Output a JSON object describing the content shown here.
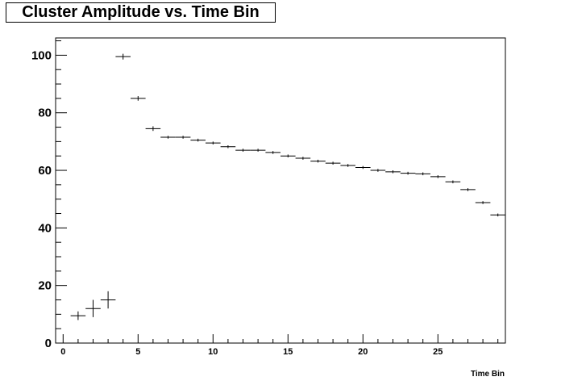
{
  "chart_data": {
    "type": "scatter",
    "title": "Cluster Amplitude vs. Time Bin",
    "xlabel": "Time Bin",
    "ylabel": "",
    "xlim": [
      -0.5,
      29.5
    ],
    "ylim": [
      0,
      106
    ],
    "x_ticks": [
      0,
      5,
      10,
      15,
      20,
      25
    ],
    "y_ticks": [
      0,
      20,
      40,
      60,
      80,
      100
    ],
    "grid": false,
    "x_error": 0.5,
    "points": [
      {
        "x": 1,
        "y": 9.5,
        "err": 1.5
      },
      {
        "x": 2,
        "y": 12,
        "err": 3
      },
      {
        "x": 3,
        "y": 15,
        "err": 3
      },
      {
        "x": 4,
        "y": 99.5,
        "err": 1
      },
      {
        "x": 5,
        "y": 85,
        "err": 0.8
      },
      {
        "x": 6,
        "y": 74.5,
        "err": 0.8
      },
      {
        "x": 7,
        "y": 71.5,
        "err": 0.5
      },
      {
        "x": 8,
        "y": 71.5,
        "err": 0.5
      },
      {
        "x": 9,
        "y": 70.5,
        "err": 0.5
      },
      {
        "x": 10,
        "y": 69.5,
        "err": 0.5
      },
      {
        "x": 11,
        "y": 68.2,
        "err": 0.5
      },
      {
        "x": 12,
        "y": 67,
        "err": 0.5
      },
      {
        "x": 13,
        "y": 67,
        "err": 0.5
      },
      {
        "x": 14,
        "y": 66.2,
        "err": 0.5
      },
      {
        "x": 15,
        "y": 65,
        "err": 0.5
      },
      {
        "x": 16,
        "y": 64.2,
        "err": 0.5
      },
      {
        "x": 17,
        "y": 63.2,
        "err": 0.5
      },
      {
        "x": 18,
        "y": 62.5,
        "err": 0.5
      },
      {
        "x": 19,
        "y": 61.7,
        "err": 0.5
      },
      {
        "x": 20,
        "y": 61,
        "err": 0.5
      },
      {
        "x": 21,
        "y": 60,
        "err": 0.5
      },
      {
        "x": 22,
        "y": 59.5,
        "err": 0.5
      },
      {
        "x": 23,
        "y": 59,
        "err": 0.5
      },
      {
        "x": 24,
        "y": 58.8,
        "err": 0.5
      },
      {
        "x": 25,
        "y": 57.8,
        "err": 0.5
      },
      {
        "x": 26,
        "y": 56,
        "err": 0.5
      },
      {
        "x": 27,
        "y": 53.3,
        "err": 0.5
      },
      {
        "x": 28,
        "y": 48.8,
        "err": 0.5
      },
      {
        "x": 29,
        "y": 44.5,
        "err": 0.5
      }
    ]
  }
}
